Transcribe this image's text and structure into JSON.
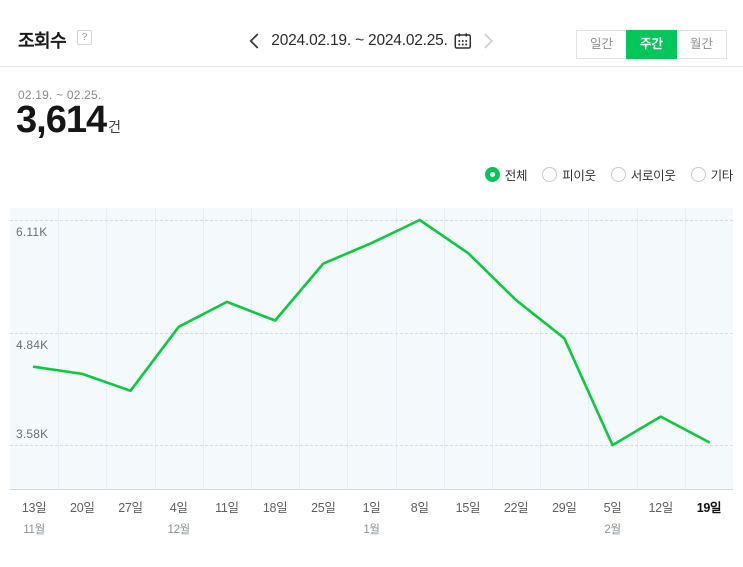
{
  "header": {
    "title": "조회수",
    "help_label": "?",
    "date_nav": {
      "range": "2024.02.19. ~ 2024.02.25."
    },
    "tabs": [
      {
        "label": "일간",
        "selected": false
      },
      {
        "label": "주간",
        "selected": true
      },
      {
        "label": "월간",
        "selected": false
      }
    ]
  },
  "summary": {
    "period": "02.19. ~ 02.25.",
    "value": "3,614",
    "unit": "건"
  },
  "filters": [
    {
      "label": "전체",
      "selected": true
    },
    {
      "label": "피이웃",
      "selected": false
    },
    {
      "label": "서로이웃",
      "selected": false
    },
    {
      "label": "기타",
      "selected": false
    }
  ],
  "colors": {
    "accent_green": "#03c75a",
    "line_green": "#0cc93f",
    "chart_bg": "#f4f9fb",
    "grid_vertical": "#e7eff4",
    "grid_dashed": "#d7dde1"
  },
  "chart_data": {
    "type": "line",
    "title": "조회수 주간 추이",
    "categories": [
      "13일",
      "20일",
      "27일",
      "4일",
      "11일",
      "18일",
      "25일",
      "1일",
      "8일",
      "15일",
      "22일",
      "29일",
      "5일",
      "12일",
      "19일"
    ],
    "month_markers": {
      "0": "11월",
      "3": "12월",
      "7": "1월",
      "12": "2월"
    },
    "values": [
      4460,
      4380,
      4190,
      4910,
      5190,
      4980,
      5620,
      5850,
      6110,
      5740,
      5210,
      4780,
      3580,
      3900,
      3614
    ],
    "series_name": "전체 조회수",
    "y_ticks": [
      {
        "label": "3.58K",
        "value": 3580
      },
      {
        "label": "4.84K",
        "value": 4845
      },
      {
        "label": "6.11K",
        "value": 6110
      }
    ],
    "ylim": [
      3075,
      6245
    ],
    "xlabel": "",
    "ylabel": "",
    "grid": true,
    "legend_position": "none"
  }
}
